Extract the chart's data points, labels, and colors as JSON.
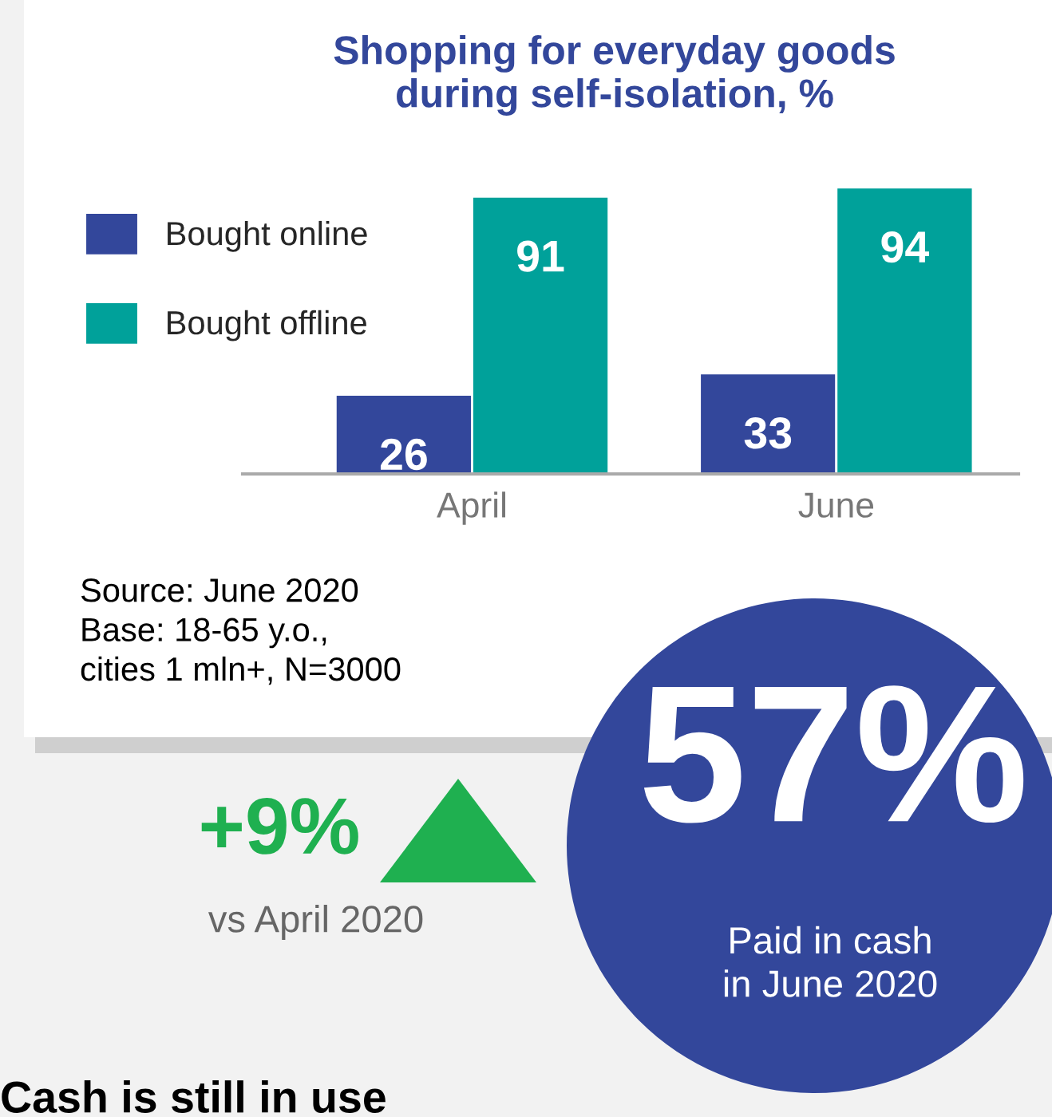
{
  "chart_data": {
    "type": "bar",
    "title": "Shopping for everyday goods\nduring self-isolation, %",
    "categories": [
      "April",
      "June"
    ],
    "series": [
      {
        "name": "Bought online",
        "color": "#33479b",
        "values": [
          26,
          33
        ]
      },
      {
        "name": "Bought offline",
        "color": "#00a19a",
        "values": [
          91,
          94
        ]
      }
    ],
    "data_labels": true,
    "legend": "top left",
    "grid": false,
    "annotations": [
      "Source: June 2020\nBase: 18-65 y.o.,\ncities 1 mln+, N=3000",
      "+9%",
      "vs April 2020",
      "57%",
      "Paid in cash\nin June 2020",
      "Cash is still in use"
    ]
  }
}
